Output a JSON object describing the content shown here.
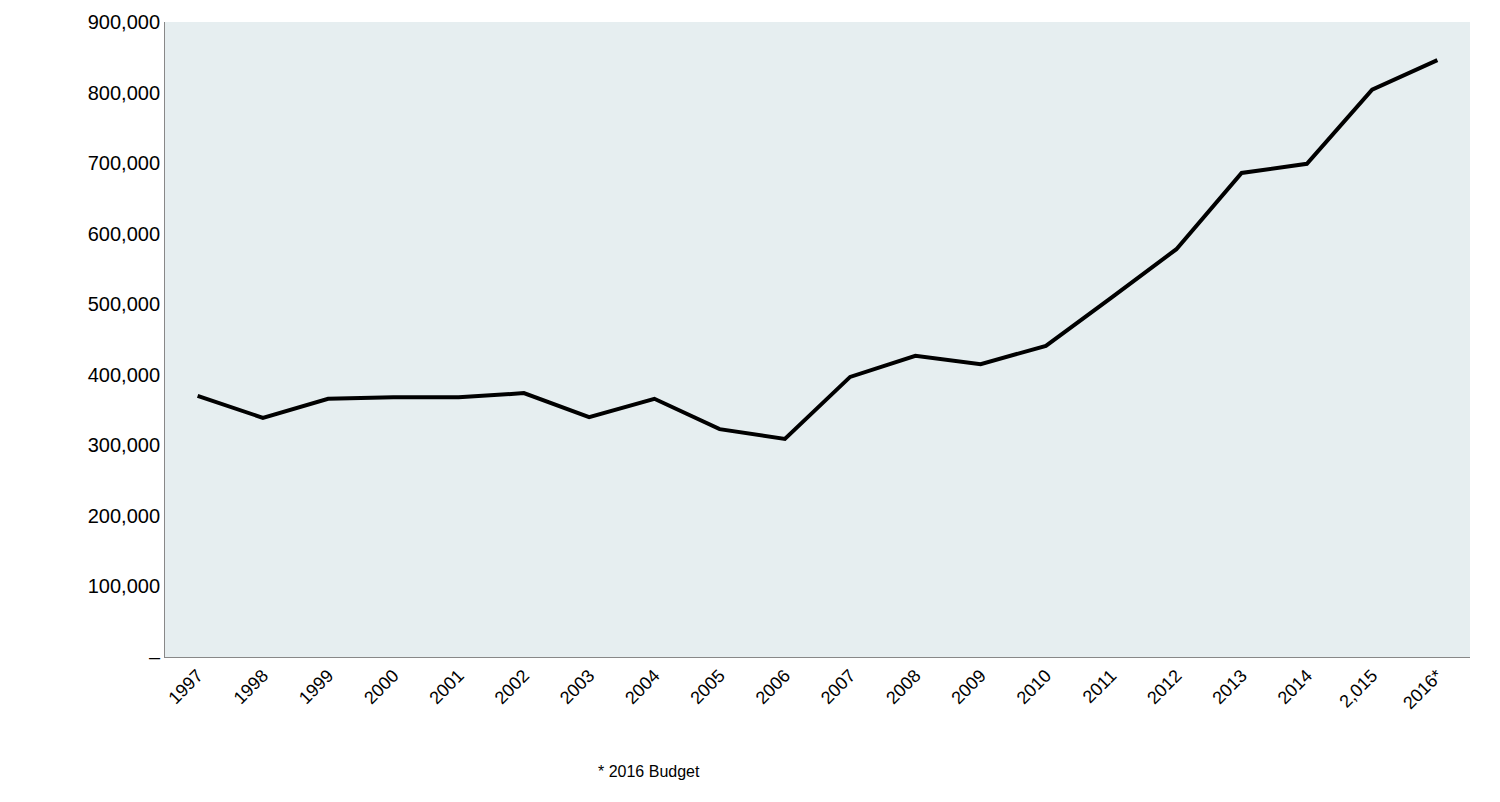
{
  "chart_data": {
    "type": "line",
    "categories": [
      "1997",
      "1998",
      "1999",
      "2000",
      "2001",
      "2002",
      "2003",
      "2004",
      "2005",
      "2006",
      "2007",
      "2008",
      "2009",
      "2010",
      "2011",
      "2012",
      "2013",
      "2014",
      "2,015",
      "2016*"
    ],
    "values": [
      370000,
      339000,
      366000,
      368000,
      368000,
      374000,
      340000,
      366000,
      323000,
      309000,
      397000,
      427000,
      415000,
      441000,
      509000,
      578000,
      686000,
      699000,
      804000,
      846000
    ],
    "color": "#000000",
    "ylim": [
      0,
      900000
    ],
    "yticks": [
      {
        "value": 0,
        "label": "–"
      },
      {
        "value": 100000,
        "label": "100,000"
      },
      {
        "value": 200000,
        "label": "200,000"
      },
      {
        "value": 300000,
        "label": "300,000"
      },
      {
        "value": 400000,
        "label": "400,000"
      },
      {
        "value": 500000,
        "label": "500,000"
      },
      {
        "value": 600000,
        "label": "600,000"
      },
      {
        "value": 700000,
        "label": "700,000"
      },
      {
        "value": 800000,
        "label": "800,000"
      },
      {
        "value": 900000,
        "label": "900,000"
      }
    ],
    "grid": false,
    "annotations": [
      "* 2016 Budget"
    ]
  }
}
